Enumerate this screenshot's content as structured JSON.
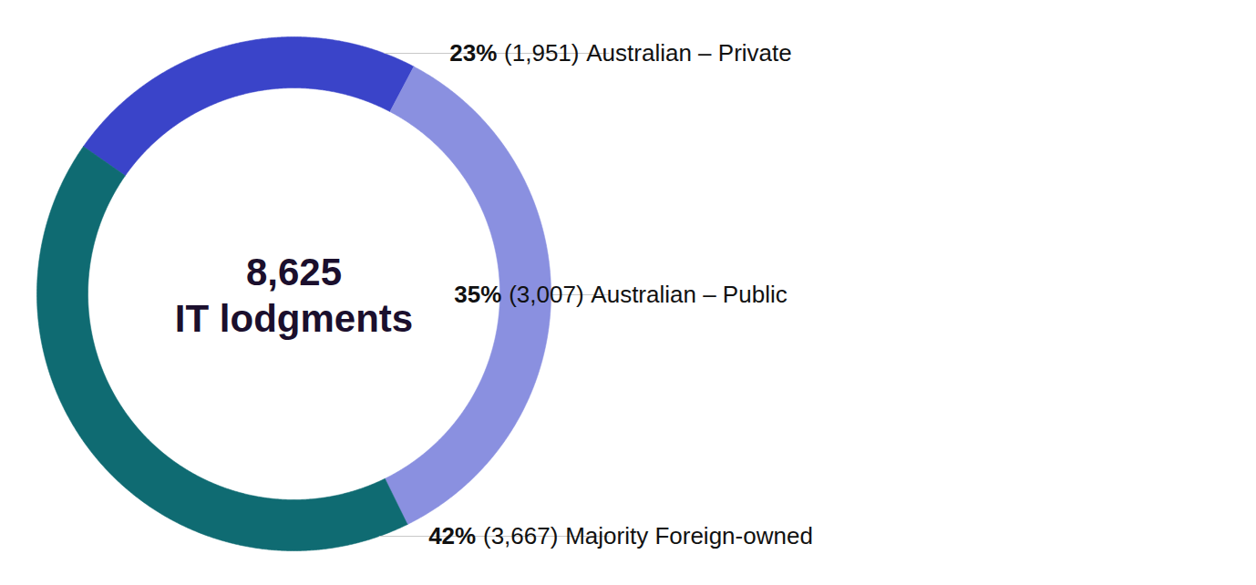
{
  "chart_data": {
    "type": "pie",
    "total": {
      "value": 8625,
      "label": "8,625"
    },
    "center_label": "IT lodgments",
    "categories": [
      "Australian – Private",
      "Australian – Public",
      "Majority Foreign-owned"
    ],
    "values": [
      23,
      35,
      42
    ],
    "value_labels": [
      "23%",
      "35%",
      "42%"
    ],
    "counts": [
      1951,
      3007,
      3667
    ],
    "count_labels": [
      "(1,951)",
      "(3,007)",
      "(3,667)"
    ],
    "colors": [
      "#3a44c9",
      "#8a90e0",
      "#0f6b72"
    ],
    "data_labels": true
  }
}
